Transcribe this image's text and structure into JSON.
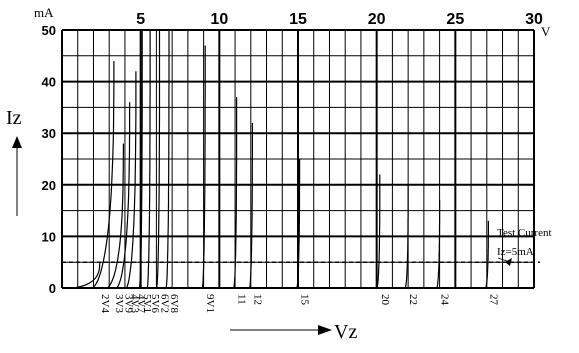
{
  "chart_data": {
    "type": "line",
    "title": "",
    "xlabel": "Vz",
    "ylabel": "Iz",
    "x_unit": "V",
    "y_unit": "mA",
    "xlim": [
      0,
      30
    ],
    "ylim": [
      0,
      50
    ],
    "x_ticks": [
      "5",
      "10",
      "15",
      "20",
      "25",
      "30"
    ],
    "y_ticks": [
      "0",
      "10",
      "20",
      "30",
      "40",
      "50"
    ],
    "grid": true,
    "reference_line": {
      "y": 5,
      "style": "dashed"
    },
    "annotation": {
      "line1": "Test Current",
      "line2": "Iz=5mA"
    },
    "series": [
      {
        "name": "2V4",
        "vz": 2.4,
        "imax": 5
      },
      {
        "name": "3V3",
        "vz": 3.3,
        "imax": 44
      },
      {
        "name": "3V9",
        "vz": 3.9,
        "imax": 28
      },
      {
        "name": "4V3",
        "vz": 4.3,
        "imax": 36
      },
      {
        "name": "4V7",
        "vz": 4.7,
        "imax": 42
      },
      {
        "name": "5V1",
        "vz": 5.1,
        "imax": 50
      },
      {
        "name": "5V6",
        "vz": 5.6,
        "imax": 50
      },
      {
        "name": "6V2",
        "vz": 6.2,
        "imax": 50
      },
      {
        "name": "6V8",
        "vz": 6.8,
        "imax": 50
      },
      {
        "name": "9V1",
        "vz": 9.1,
        "imax": 47
      },
      {
        "name": "11",
        "vz": 11.1,
        "imax": 37
      },
      {
        "name": "12",
        "vz": 12.1,
        "imax": 32
      },
      {
        "name": "15",
        "vz": 15.1,
        "imax": 25
      },
      {
        "name": "20",
        "vz": 20.2,
        "imax": 22
      },
      {
        "name": "22",
        "vz": 22.0,
        "imax": 20
      },
      {
        "name": "24",
        "vz": 24.0,
        "imax": 17
      },
      {
        "name": "27",
        "vz": 27.1,
        "imax": 13
      }
    ]
  }
}
